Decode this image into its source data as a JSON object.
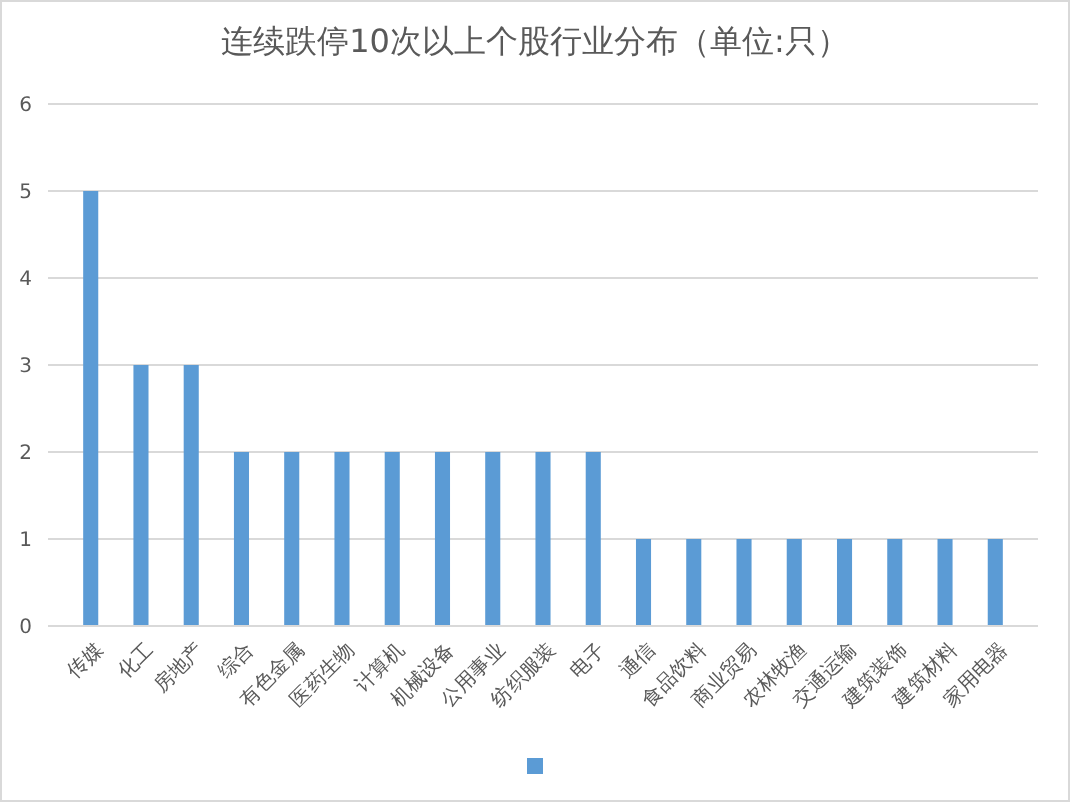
{
  "chart_data": {
    "type": "bar",
    "title": "连续跌停10次以上个股行业分布（单位:只）",
    "categories": [
      "传媒",
      "化工",
      "房地产",
      "综合",
      "有色金属",
      "医药生物",
      "计算机",
      "机械设备",
      "公用事业",
      "纺织服装",
      "电子",
      "通信",
      "食品饮料",
      "商业贸易",
      "农林牧渔",
      "交通运输",
      "建筑装饰",
      "建筑材料",
      "家用电器"
    ],
    "series": [
      {
        "color": "#5b9bd5",
        "values": [
          5,
          3,
          3,
          2,
          2,
          2,
          2,
          2,
          2,
          2,
          2,
          1,
          1,
          1,
          1,
          1,
          1,
          1,
          1
        ]
      }
    ],
    "ylim": [
      0,
      6
    ],
    "yticks": [
      0,
      1,
      2,
      3,
      4,
      5,
      6
    ],
    "grid": "y"
  }
}
